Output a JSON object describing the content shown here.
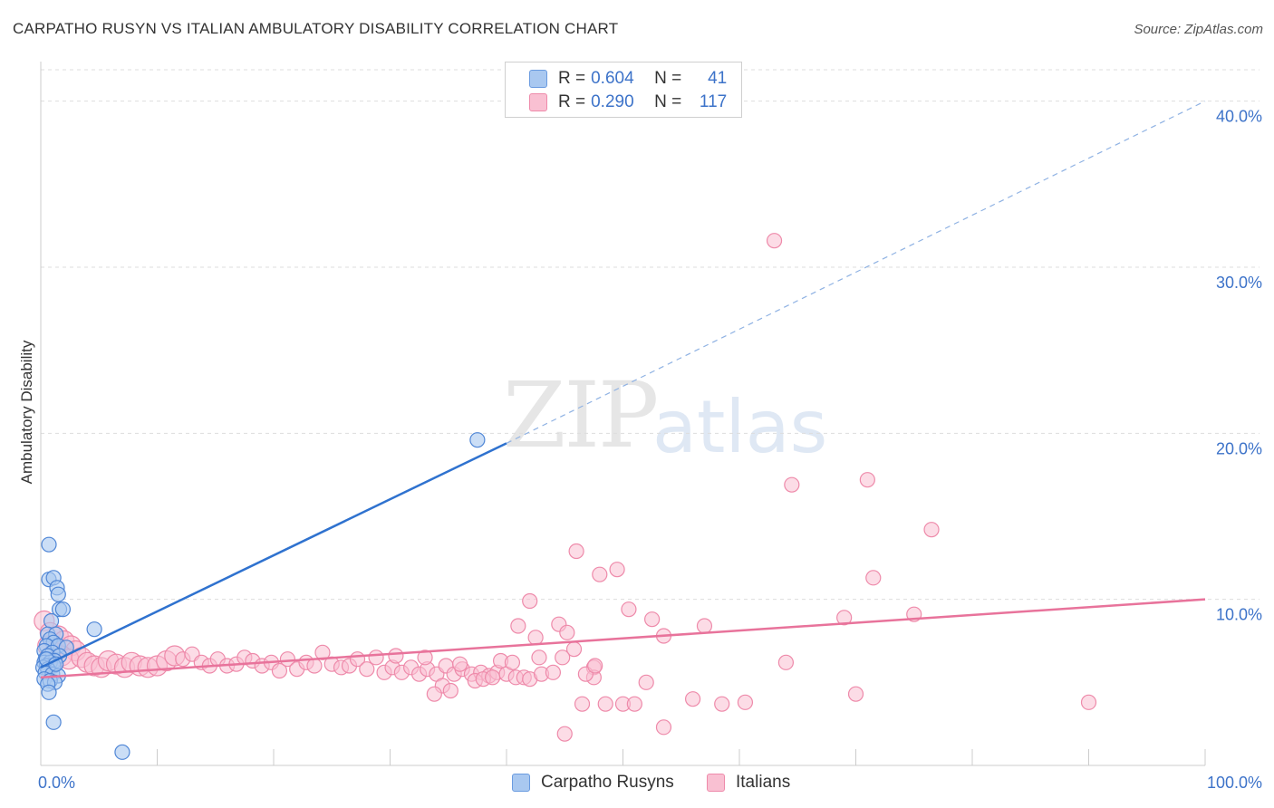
{
  "header": {
    "title": "CARPATHO RUSYN VS ITALIAN AMBULATORY DISABILITY CORRELATION CHART",
    "source": "Source: ZipAtlas.com"
  },
  "watermark": {
    "zip": "ZIP",
    "atlas": "atlas"
  },
  "legend": {
    "rows": [
      {
        "r_label": "R =",
        "r_value": "0.604",
        "n_label": "N =",
        "n_value": "41",
        "color": "#a9c8f0",
        "border": "#6a9be0"
      },
      {
        "r_label": "R =",
        "r_value": "0.290",
        "n_label": "N =",
        "n_value": "117",
        "color": "#f9c0d2",
        "border": "#ee8aaa"
      }
    ]
  },
  "bottom_legend": [
    {
      "label": "Carpatho Rusyns",
      "color": "#a9c8f0",
      "border": "#6a9be0"
    },
    {
      "label": "Italians",
      "color": "#f9c0d2",
      "border": "#ee8aaa"
    }
  ],
  "colors": {
    "blue": "#2f72cf",
    "pink": "#e8739b",
    "grid": "#dddddd",
    "tick_text": "#3d73c9"
  },
  "chart_data": {
    "type": "scatter",
    "title": "CARPATHO RUSYN VS ITALIAN AMBULATORY DISABILITY CORRELATION CHART",
    "xlabel": "",
    "ylabel": "Ambulatory Disability",
    "xlim": [
      0,
      100
    ],
    "ylim": [
      0,
      42
    ],
    "x_tick_labels": [
      "0.0%",
      "100.0%"
    ],
    "y_ticks": [
      10,
      20,
      30,
      40
    ],
    "y_tick_labels": [
      "10.0%",
      "20.0%",
      "30.0%",
      "40.0%"
    ],
    "grid": true,
    "series": [
      {
        "name": "Carpatho Rusyns",
        "R": 0.604,
        "N": 41,
        "trend": {
          "x0": 0,
          "y0": 5.9,
          "x1": 40,
          "y1": 19.4,
          "dashed_to": {
            "x": 100,
            "y": 40.0
          }
        },
        "points": [
          [
            0.7,
            13.3
          ],
          [
            0.7,
            11.2
          ],
          [
            1.1,
            11.3
          ],
          [
            1.4,
            10.7
          ],
          [
            1.5,
            10.3
          ],
          [
            1.6,
            9.4
          ],
          [
            1.9,
            9.4
          ],
          [
            0.9,
            8.7
          ],
          [
            0.6,
            7.9
          ],
          [
            1.3,
            7.9
          ],
          [
            4.6,
            8.2
          ],
          [
            0.8,
            7.6
          ],
          [
            1.1,
            7.4
          ],
          [
            0.5,
            7.2
          ],
          [
            1.5,
            7.2
          ],
          [
            2.2,
            7.1
          ],
          [
            0.3,
            6.9
          ],
          [
            1.0,
            6.8
          ],
          [
            0.6,
            6.6
          ],
          [
            1.6,
            6.6
          ],
          [
            0.4,
            6.4
          ],
          [
            1.2,
            6.3
          ],
          [
            0.3,
            6.2
          ],
          [
            0.8,
            6.2
          ],
          [
            0.5,
            6.0
          ],
          [
            1.1,
            6.0
          ],
          [
            0.2,
            5.9
          ],
          [
            0.6,
            5.8
          ],
          [
            0.4,
            5.6
          ],
          [
            1.0,
            5.5
          ],
          [
            1.5,
            5.4
          ],
          [
            0.3,
            5.2
          ],
          [
            0.8,
            5.1
          ],
          [
            1.2,
            5.0
          ],
          [
            0.6,
            4.9
          ],
          [
            0.7,
            4.4
          ],
          [
            1.1,
            2.6
          ],
          [
            7.0,
            0.8
          ],
          [
            37.5,
            19.6
          ],
          [
            0.5,
            6.4
          ],
          [
            1.3,
            6.1
          ]
        ]
      },
      {
        "name": "Italians",
        "R": 0.29,
        "N": 117,
        "trend": {
          "x0": 0,
          "y0": 5.3,
          "x1": 100,
          "y1": 10.0
        },
        "points": [
          [
            0.3,
            8.7
          ],
          [
            0.8,
            8.0
          ],
          [
            1.5,
            7.8
          ],
          [
            2.0,
            7.5
          ],
          [
            2.6,
            7.2
          ],
          [
            3.0,
            6.9
          ],
          [
            0.6,
            7.2
          ],
          [
            1.2,
            6.8
          ],
          [
            1.8,
            6.6
          ],
          [
            2.4,
            6.4
          ],
          [
            3.5,
            6.5
          ],
          [
            4.0,
            6.2
          ],
          [
            4.6,
            6.0
          ],
          [
            5.2,
            5.9
          ],
          [
            5.8,
            6.3
          ],
          [
            6.5,
            6.1
          ],
          [
            7.2,
            5.9
          ],
          [
            7.8,
            6.2
          ],
          [
            8.5,
            6.0
          ],
          [
            9.2,
            5.9
          ],
          [
            10.0,
            6.0
          ],
          [
            10.8,
            6.3
          ],
          [
            11.5,
            6.6
          ],
          [
            12.2,
            6.4
          ],
          [
            13.0,
            6.7
          ],
          [
            13.8,
            6.2
          ],
          [
            14.5,
            6.0
          ],
          [
            15.2,
            6.4
          ],
          [
            16.0,
            6.0
          ],
          [
            16.8,
            6.1
          ],
          [
            17.5,
            6.5
          ],
          [
            18.2,
            6.3
          ],
          [
            19.0,
            6.0
          ],
          [
            19.8,
            6.2
          ],
          [
            20.5,
            5.7
          ],
          [
            21.2,
            6.4
          ],
          [
            22.0,
            5.8
          ],
          [
            22.8,
            6.2
          ],
          [
            23.5,
            6.0
          ],
          [
            24.2,
            6.8
          ],
          [
            25.0,
            6.1
          ],
          [
            25.8,
            5.9
          ],
          [
            26.5,
            6.0
          ],
          [
            27.2,
            6.4
          ],
          [
            28.0,
            5.8
          ],
          [
            28.8,
            6.5
          ],
          [
            29.5,
            5.6
          ],
          [
            30.2,
            5.9
          ],
          [
            31.0,
            5.6
          ],
          [
            31.8,
            5.9
          ],
          [
            32.5,
            5.5
          ],
          [
            33.2,
            5.8
          ],
          [
            34.0,
            5.5
          ],
          [
            34.8,
            6.0
          ],
          [
            35.5,
            5.5
          ],
          [
            36.2,
            5.8
          ],
          [
            37.0,
            5.5
          ],
          [
            37.8,
            5.6
          ],
          [
            38.5,
            5.4
          ],
          [
            39.2,
            5.6
          ],
          [
            40.0,
            5.5
          ],
          [
            40.8,
            5.3
          ],
          [
            41.5,
            5.3
          ],
          [
            30.5,
            6.6
          ],
          [
            33.0,
            6.5
          ],
          [
            36.0,
            6.1
          ],
          [
            39.5,
            6.3
          ],
          [
            42.0,
            5.2
          ],
          [
            43.0,
            5.5
          ],
          [
            34.5,
            4.8
          ],
          [
            35.2,
            4.5
          ],
          [
            33.8,
            4.3
          ],
          [
            37.3,
            5.1
          ],
          [
            38.0,
            5.2
          ],
          [
            38.8,
            5.3
          ],
          [
            40.5,
            6.2
          ],
          [
            42.8,
            6.5
          ],
          [
            41.0,
            8.4
          ],
          [
            42.5,
            7.7
          ],
          [
            42.0,
            9.9
          ],
          [
            44.5,
            8.5
          ],
          [
            45.2,
            8.0
          ],
          [
            45.8,
            7.0
          ],
          [
            46.0,
            12.9
          ],
          [
            48.0,
            11.5
          ],
          [
            49.5,
            11.8
          ],
          [
            50.5,
            9.4
          ],
          [
            52.5,
            8.8
          ],
          [
            53.5,
            7.8
          ],
          [
            47.5,
            5.9
          ],
          [
            47.5,
            5.3
          ],
          [
            46.5,
            3.7
          ],
          [
            50.0,
            3.7
          ],
          [
            51.0,
            3.7
          ],
          [
            52.0,
            5.0
          ],
          [
            53.5,
            2.3
          ],
          [
            56.0,
            4.0
          ],
          [
            57.0,
            8.4
          ],
          [
            58.5,
            3.7
          ],
          [
            60.5,
            3.8
          ],
          [
            63.0,
            31.6
          ],
          [
            64.0,
            6.2
          ],
          [
            64.5,
            16.9
          ],
          [
            70.0,
            4.3
          ],
          [
            69.0,
            8.9
          ],
          [
            71.0,
            17.2
          ],
          [
            71.5,
            11.3
          ],
          [
            75.0,
            9.1
          ],
          [
            76.5,
            14.2
          ],
          [
            90.0,
            3.8
          ],
          [
            44.0,
            5.6
          ],
          [
            45.0,
            1.9
          ],
          [
            44.8,
            6.5
          ],
          [
            46.8,
            5.5
          ],
          [
            47.6,
            6.0
          ],
          [
            48.5,
            3.7
          ]
        ]
      }
    ]
  }
}
